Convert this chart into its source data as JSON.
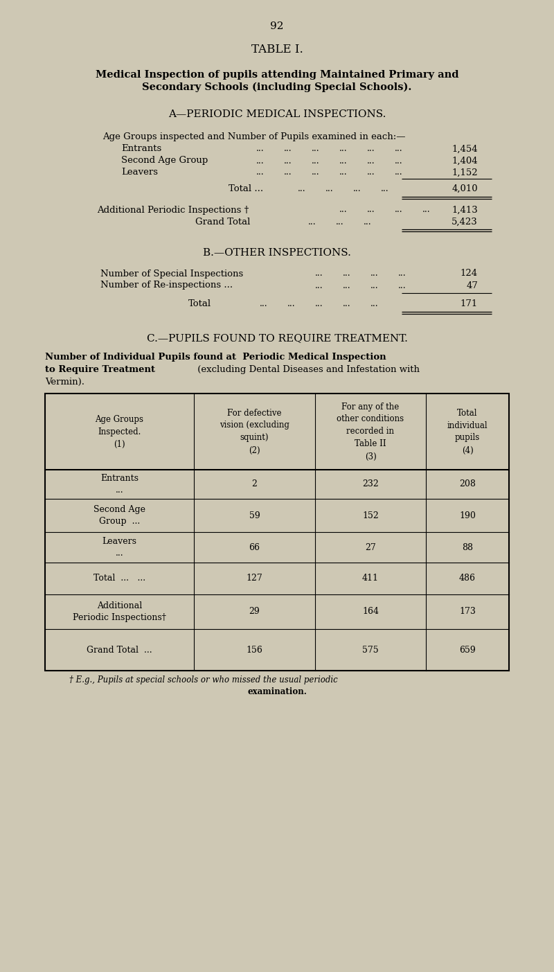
{
  "bg_color": "#cec8b4",
  "page_number": "92",
  "title": "TABLE I.",
  "subtitle_bold_line1": "Medical Inspection of pupils attending Maintained Primary and",
  "subtitle_bold_line2": "Secondary Schools (including Special Schools).",
  "section_a_title": "A—PERIODIC MEDICAL INSPECTIONS.",
  "section_a_intro": "Age Groups inspected and Number of Pupils examined in each:—",
  "section_a_rows": [
    [
      "Entrants",
      "1,454"
    ],
    [
      "Second Age Group",
      "1,404"
    ],
    [
      "Leavers",
      "1,152"
    ]
  ],
  "section_a_total_label": "Total ...",
  "section_a_total": "4,010",
  "section_a_additional_label": "Additional Periodic Inspections †",
  "section_a_additional": "1,413",
  "section_a_grand_label": "Grand Total",
  "section_a_grand": "5,423",
  "section_b_title": "B.—OTHER INSPECTIONS.",
  "section_b_rows": [
    [
      "Number of Special Inspections",
      "124"
    ],
    [
      "Number of Re-inspections ...",
      "47"
    ]
  ],
  "section_b_total_label": "Total",
  "section_b_total": "171",
  "section_c_title": "C.—PUPILS FOUND TO REQUIRE TREATMENT.",
  "section_c_bold1": "Number of Individual Pupils found at  Periodic Medical Inspection",
  "section_c_bold2": "to Require Treatment",
  "section_c_normal": " (excluding Dental Diseases and Infestation with",
  "section_c_normal2": "Vermin).",
  "table_headers": [
    "Age Groups\nInspected.\n(1)",
    "For defective\nvision (excluding\nsquint)\n(2)",
    "For any of the\nother conditions\nrecorded in\nTable II\n(3)",
    "Total\nindividual\npupils\n(4)"
  ],
  "table_rows": [
    [
      "Entrants\n...",
      "2",
      "232",
      "208"
    ],
    [
      "Second Age\nGroup  ...",
      "59",
      "152",
      "190"
    ],
    [
      "Leavers\n...",
      "66",
      "27",
      "88"
    ],
    [
      "Total  ... ...",
      "127",
      "411",
      "486"
    ],
    [
      "Additional\nPeriodic Inspections†",
      "29",
      "164",
      "173"
    ],
    [
      "Grand Total  ...",
      "156",
      "575",
      "659"
    ]
  ],
  "footnote_italic": "† E.g., Pupils at special schools or who missed the usual periodic",
  "footnote_bold": "examination."
}
